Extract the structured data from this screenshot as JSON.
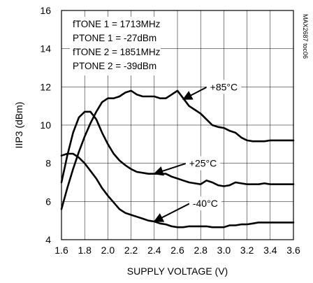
{
  "chart_data": {
    "type": "line",
    "title": "",
    "xlabel": "SUPPLY VOLTAGE (V)",
    "ylabel": "IIP3 (dBm)",
    "xlim": [
      1.6,
      3.6
    ],
    "ylim": [
      4,
      16
    ],
    "xticks": [
      "1.6",
      "1.8",
      "2.0",
      "2.2",
      "2.4",
      "2.6",
      "2.8",
      "3.0",
      "3.2",
      "3.4",
      "3.6"
    ],
    "yticks": [
      "4",
      "6",
      "8",
      "10",
      "12",
      "14",
      "16"
    ],
    "grid": true,
    "annotations": {
      "conditions": [
        "fTONE 1 = 1713MHz",
        "PTONE 1 = -27dBm",
        "fTONE 2 = 1851MHz",
        "PTONE 2 = -39dBm"
      ],
      "part_code": "MAX2687 toc06"
    },
    "series": [
      {
        "name": "+85°C",
        "x": [
          1.6,
          1.65,
          1.7,
          1.75,
          1.8,
          1.85,
          1.9,
          1.95,
          2.0,
          2.05,
          2.1,
          2.15,
          2.2,
          2.25,
          2.3,
          2.35,
          2.4,
          2.45,
          2.5,
          2.55,
          2.6,
          2.65,
          2.7,
          2.75,
          2.8,
          2.85,
          2.9,
          2.95,
          3.0,
          3.05,
          3.1,
          3.15,
          3.2,
          3.25,
          3.3,
          3.35,
          3.4,
          3.45,
          3.5,
          3.55,
          3.6
        ],
        "values": [
          5.6,
          6.7,
          7.7,
          8.6,
          9.4,
          10.1,
          10.7,
          11.2,
          11.4,
          11.4,
          11.5,
          11.7,
          11.8,
          11.6,
          11.5,
          11.5,
          11.5,
          11.4,
          11.4,
          11.6,
          11.8,
          11.4,
          11.0,
          10.8,
          10.6,
          10.3,
          10.0,
          9.9,
          9.85,
          9.7,
          9.6,
          9.35,
          9.2,
          9.15,
          9.15,
          9.15,
          9.2,
          9.2,
          9.2,
          9.2,
          9.2
        ]
      },
      {
        "name": "+25°C",
        "x": [
          1.6,
          1.65,
          1.7,
          1.75,
          1.8,
          1.85,
          1.9,
          1.95,
          2.0,
          2.05,
          2.1,
          2.15,
          2.2,
          2.25,
          2.3,
          2.35,
          2.4,
          2.45,
          2.5,
          2.55,
          2.6,
          2.65,
          2.7,
          2.75,
          2.8,
          2.85,
          2.9,
          2.95,
          3.0,
          3.05,
          3.1,
          3.15,
          3.2,
          3.25,
          3.3,
          3.35,
          3.4,
          3.45,
          3.5,
          3.55,
          3.6
        ],
        "values": [
          7.0,
          8.4,
          9.6,
          10.4,
          10.7,
          10.7,
          10.3,
          9.6,
          9.0,
          8.5,
          8.15,
          7.9,
          7.7,
          7.55,
          7.5,
          7.45,
          7.45,
          7.45,
          7.45,
          7.3,
          7.2,
          7.1,
          7.0,
          6.95,
          6.9,
          7.1,
          7.0,
          6.85,
          6.8,
          6.85,
          7.0,
          6.95,
          6.9,
          6.9,
          6.9,
          6.95,
          6.9,
          6.9,
          6.9,
          6.9,
          6.9
        ]
      },
      {
        "name": "-40°C",
        "x": [
          1.6,
          1.65,
          1.7,
          1.75,
          1.8,
          1.85,
          1.9,
          1.95,
          2.0,
          2.05,
          2.1,
          2.15,
          2.2,
          2.25,
          2.3,
          2.35,
          2.4,
          2.45,
          2.5,
          2.55,
          2.6,
          2.65,
          2.7,
          2.75,
          2.8,
          2.85,
          2.9,
          2.95,
          3.0,
          3.05,
          3.1,
          3.15,
          3.2,
          3.25,
          3.3,
          3.35,
          3.4,
          3.45,
          3.5,
          3.55,
          3.6
        ],
        "values": [
          8.4,
          8.5,
          8.5,
          8.3,
          8.0,
          7.6,
          7.2,
          6.7,
          6.3,
          5.95,
          5.6,
          5.4,
          5.3,
          5.2,
          5.1,
          5.0,
          4.95,
          4.85,
          4.8,
          4.7,
          4.65,
          4.65,
          4.7,
          4.7,
          4.7,
          4.7,
          4.65,
          4.65,
          4.65,
          4.75,
          4.75,
          4.8,
          4.8,
          4.85,
          4.9,
          4.9,
          4.9,
          4.9,
          4.9,
          4.9,
          4.9
        ]
      }
    ],
    "curve_labels": [
      {
        "text": "+85°C",
        "box_x": 3.0,
        "box_y": 12.0,
        "arrow_x": 2.65,
        "arrow_y": 11.35
      },
      {
        "text": "+25°C",
        "box_x": 2.82,
        "box_y": 8.0,
        "arrow_x": 2.4,
        "arrow_y": 7.45
      },
      {
        "text": "-40°C",
        "box_x": 2.84,
        "box_y": 5.9,
        "arrow_x": 2.4,
        "arrow_y": 4.95
      }
    ]
  }
}
